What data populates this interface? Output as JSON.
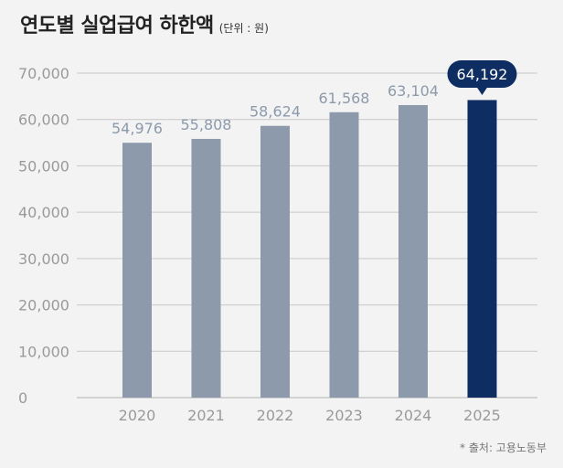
{
  "header": {
    "title": "연도별 실업급여 하한액",
    "unit_note": "(단위 : 원)"
  },
  "footer": {
    "source": "* 출처: 고용노동부"
  },
  "chart_data": {
    "type": "bar",
    "title": "연도별 실업급여 하한액",
    "subtitle": "(단위 : 원)",
    "xlabel": "",
    "ylabel": "",
    "categories": [
      "2020",
      "2021",
      "2022",
      "2023",
      "2024",
      "2025"
    ],
    "values": [
      54976,
      55808,
      58624,
      61568,
      63104,
      64192
    ],
    "data_labels": [
      "54,976",
      "55,808",
      "58,624",
      "61,568",
      "63,104",
      "64,192"
    ],
    "ylim": [
      0,
      70000
    ],
    "yticks": [
      0,
      10000,
      20000,
      30000,
      40000,
      50000,
      60000,
      70000
    ],
    "ytick_labels": [
      "0",
      "10,000",
      "20,000",
      "30,000",
      "40,000",
      "50,000",
      "60,000",
      "70,000"
    ],
    "grid": true,
    "highlight_index": 5,
    "colors": {
      "bar": "#8c9aab",
      "highlight_bar": "#0e2d62",
      "highlight_label_bg": "#0e2d62",
      "highlight_label_text": "#ffffff",
      "label_text": "#8c9aab",
      "axis_text": "#9a9a9a",
      "grid": "#c8c8c8"
    }
  }
}
